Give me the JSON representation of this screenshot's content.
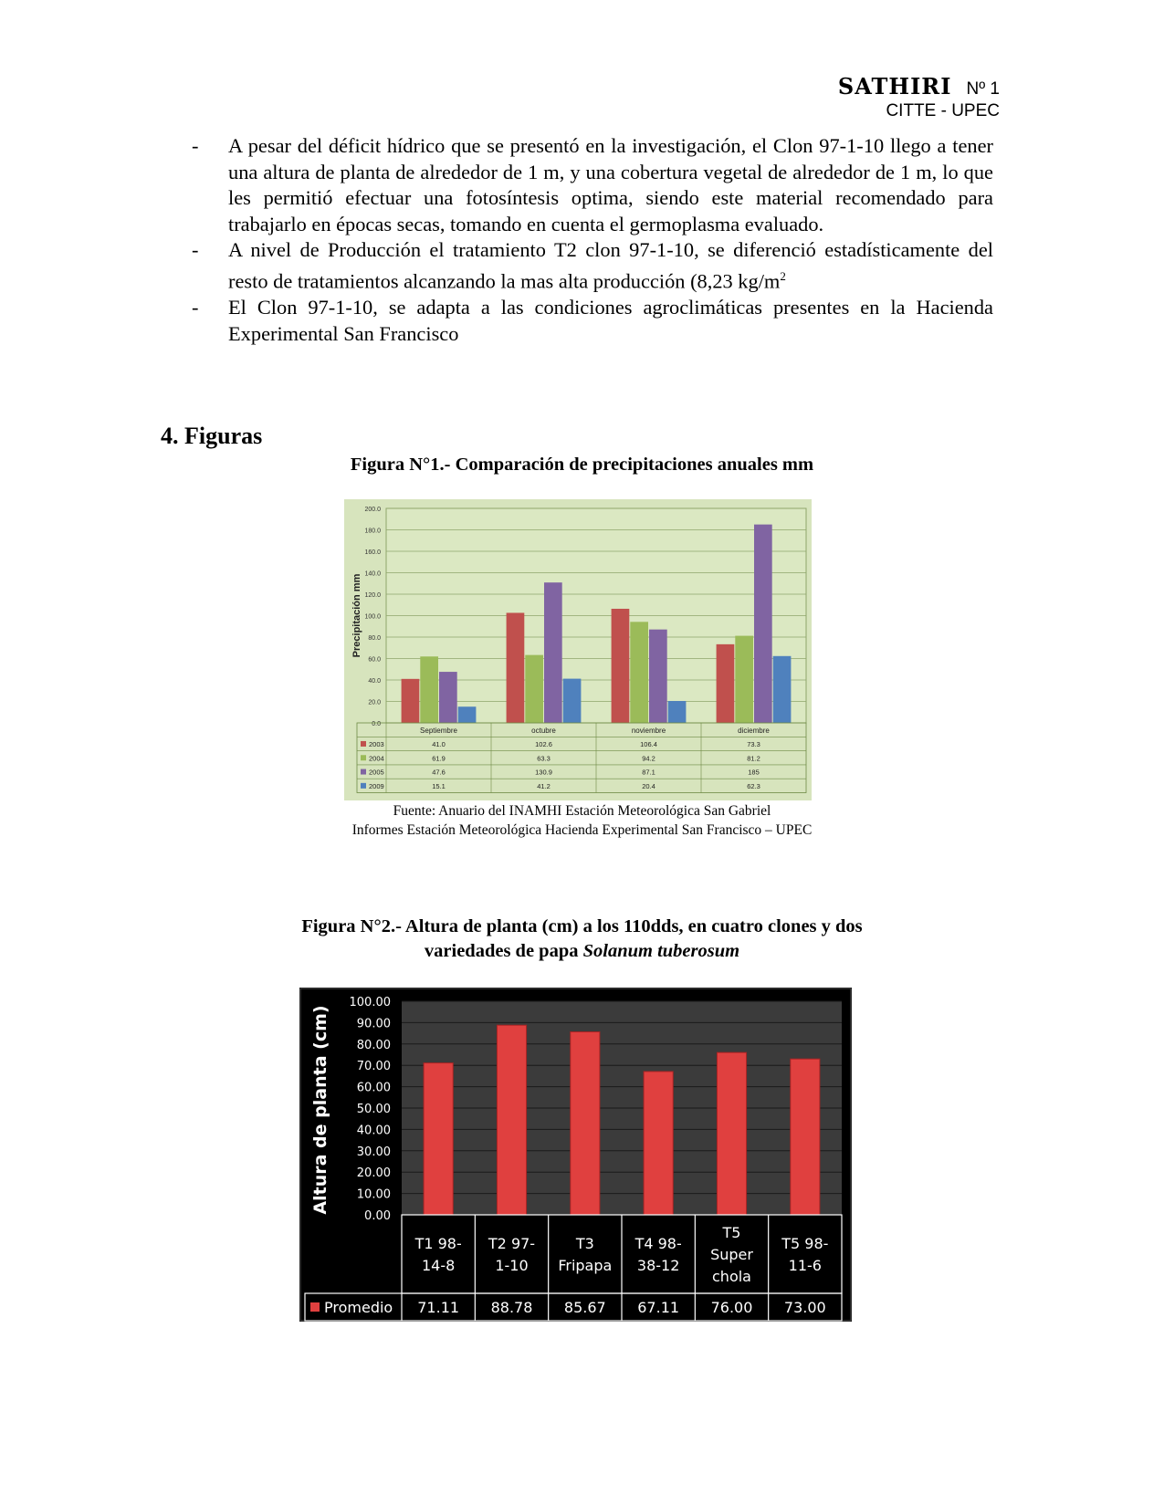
{
  "header": {
    "brand": "SATHIRI",
    "number": "Nº 1",
    "org": "CITTE - UPEC"
  },
  "bullets": [
    "A pesar del déficit hídrico que se presentó en la  investigación, el Clon 97-1-10 llego a tener una altura de planta de alrededor de 1 m, y una cobertura vegetal de alrededor de 1 m, lo que les permitió efectuar una fotosíntesis optima, siendo este material recomendado para trabajarlo en épocas secas, tomando en cuenta el germoplasma evaluado.",
    "A nivel de Producción el tratamiento T2 clon 97-1-10, se diferenció estadísticamente del resto de tratamientos alcanzando la mas alta producción (8,23 kg/m",
    "El Clon 97-1-10, se adapta a las condiciones agroclimáticas presentes en la Hacienda Experimental San Francisco"
  ],
  "bullet2_superscript": "2",
  "section_title": "4. Figuras",
  "figure1": {
    "caption": "Figura N°1.- Comparación de precipitaciones anuales mm",
    "source_line1": "Fuente: Anuario del INAMHI Estación Meteorológica San Gabriel",
    "source_line2": "Informes  Estación Meteorológica Hacienda Experimental San Francisco – UPEC"
  },
  "figure2": {
    "caption_line1": "Figura N°2.- Altura de planta (cm) a los 110dds, en cuatro clones y dos",
    "caption_line2_prefix": "variedades de papa ",
    "caption_line2_italic": "Solanum tuberosum"
  },
  "chart_data": [
    {
      "type": "bar",
      "title": "",
      "xlabel": "",
      "ylabel": "Precipitación mm",
      "ylim": [
        0,
        200
      ],
      "yticks": [
        "0.0",
        "20.0",
        "40.0",
        "60.0",
        "80.0",
        "100.0",
        "120.0",
        "140.0",
        "160.0",
        "180.0",
        "200.0"
      ],
      "categories": [
        "Septiembre",
        "octubre",
        "noviembre",
        "diciembre"
      ],
      "series": [
        {
          "name": "2003",
          "color": "#c0504d",
          "values": [
            41.0,
            102.6,
            106.4,
            73.3
          ],
          "labels": [
            "41.0",
            "102.6",
            "106.4",
            "73.3"
          ]
        },
        {
          "name": "2004",
          "color": "#9bbb59",
          "values": [
            61.9,
            63.3,
            94.2,
            81.2
          ],
          "labels": [
            "61.9",
            "63.3",
            "94.2",
            "81.2"
          ]
        },
        {
          "name": "2005",
          "color": "#8064a2",
          "values": [
            47.6,
            130.9,
            87.1,
            185
          ],
          "labels": [
            "47.6",
            "130.9",
            "87.1",
            "185"
          ]
        },
        {
          "name": "2009",
          "color": "#4f81bd",
          "values": [
            15.1,
            41.2,
            20.4,
            62.3
          ],
          "labels": [
            "15.1",
            "41.2",
            "20.4",
            "62.3"
          ]
        }
      ],
      "grid": true,
      "legend": "data-table",
      "background": "#d7e4bd"
    },
    {
      "type": "bar",
      "title": "",
      "xlabel": "",
      "ylabel": "Altura de planta (cm)",
      "ylim": [
        0,
        100
      ],
      "yticks": [
        "0.00",
        "10.00",
        "20.00",
        "30.00",
        "40.00",
        "50.00",
        "60.00",
        "70.00",
        "80.00",
        "90.00",
        "100.00"
      ],
      "categories": [
        [
          "T1 98-",
          "14-8"
        ],
        [
          "T2 97-",
          "1-10"
        ],
        [
          "T3",
          "Fripapa"
        ],
        [
          "T4 98-",
          "38-12"
        ],
        [
          "T5",
          "Super",
          "chola"
        ],
        [
          "T5 98-",
          "11-6"
        ]
      ],
      "series": [
        {
          "name": "Promedio",
          "color": "#e0403f",
          "values": [
            71.11,
            88.78,
            85.67,
            67.11,
            76.0,
            73.0
          ],
          "labels": [
            "71.11",
            "88.78",
            "85.67",
            "67.11",
            "76.00",
            "73.00"
          ]
        }
      ],
      "grid": true,
      "legend": "data-table",
      "background": "#000000"
    }
  ]
}
